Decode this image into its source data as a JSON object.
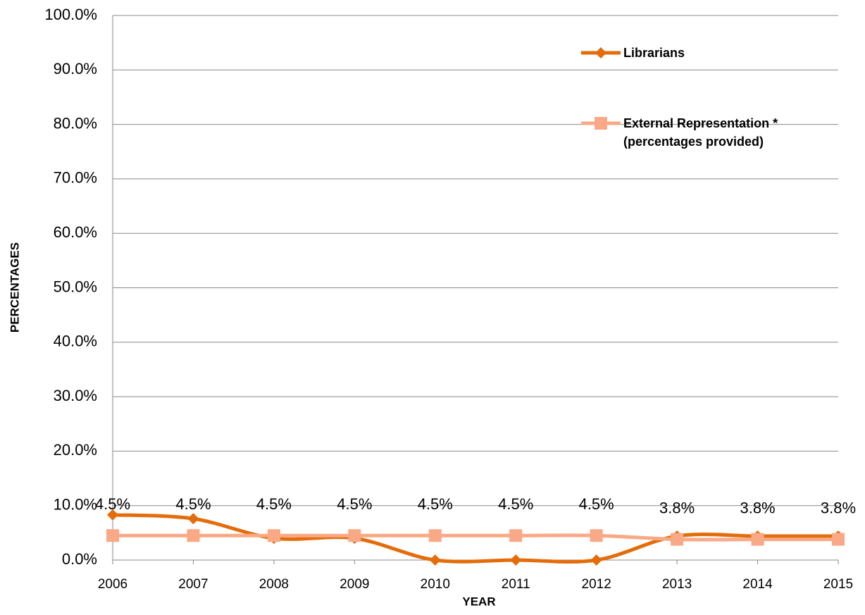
{
  "chart_data": {
    "type": "line",
    "x_label": "YEAR",
    "y_label": "PERCENTAGES",
    "categories": [
      "2006",
      "2007",
      "2008",
      "2009",
      "2010",
      "2011",
      "2012",
      "2013",
      "2014",
      "2015"
    ],
    "series": [
      {
        "name": "Librarians",
        "color": "#e46c0a",
        "marker": "diamond",
        "values": [
          8.3,
          7.6,
          4.0,
          4.0,
          0,
          0,
          0,
          4.4,
          4.4,
          4.4
        ]
      },
      {
        "name": "External Representation * (percentages provided)",
        "color": "#f9a985",
        "marker": "square",
        "values": [
          4.5,
          4.5,
          4.5,
          4.5,
          4.5,
          4.5,
          4.5,
          3.8,
          3.8,
          3.8
        ],
        "value_labels": [
          "4.5%",
          "4.5%",
          "4.5%",
          "4.5%",
          "4.5%",
          "4.5%",
          "4.5%",
          "3.8%",
          "3.8%",
          "3.8%"
        ]
      }
    ],
    "ylim": [
      0,
      100
    ],
    "yticks": [
      {
        "value": 0,
        "label": "0.0%"
      },
      {
        "value": 10,
        "label": "10.0%"
      },
      {
        "value": 20,
        "label": "20.0%"
      },
      {
        "value": 30,
        "label": "30.0%"
      },
      {
        "value": 40,
        "label": "40.0%"
      },
      {
        "value": 50,
        "label": "50.0%"
      },
      {
        "value": 60,
        "label": "60.0%"
      },
      {
        "value": 70,
        "label": "70.0%"
      },
      {
        "value": 80,
        "label": "80.0%"
      },
      {
        "value": 90,
        "label": "90.0%"
      },
      {
        "value": 100,
        "label": "100.0%"
      }
    ],
    "grid": true,
    "smooth": true,
    "legend": "top-right"
  }
}
